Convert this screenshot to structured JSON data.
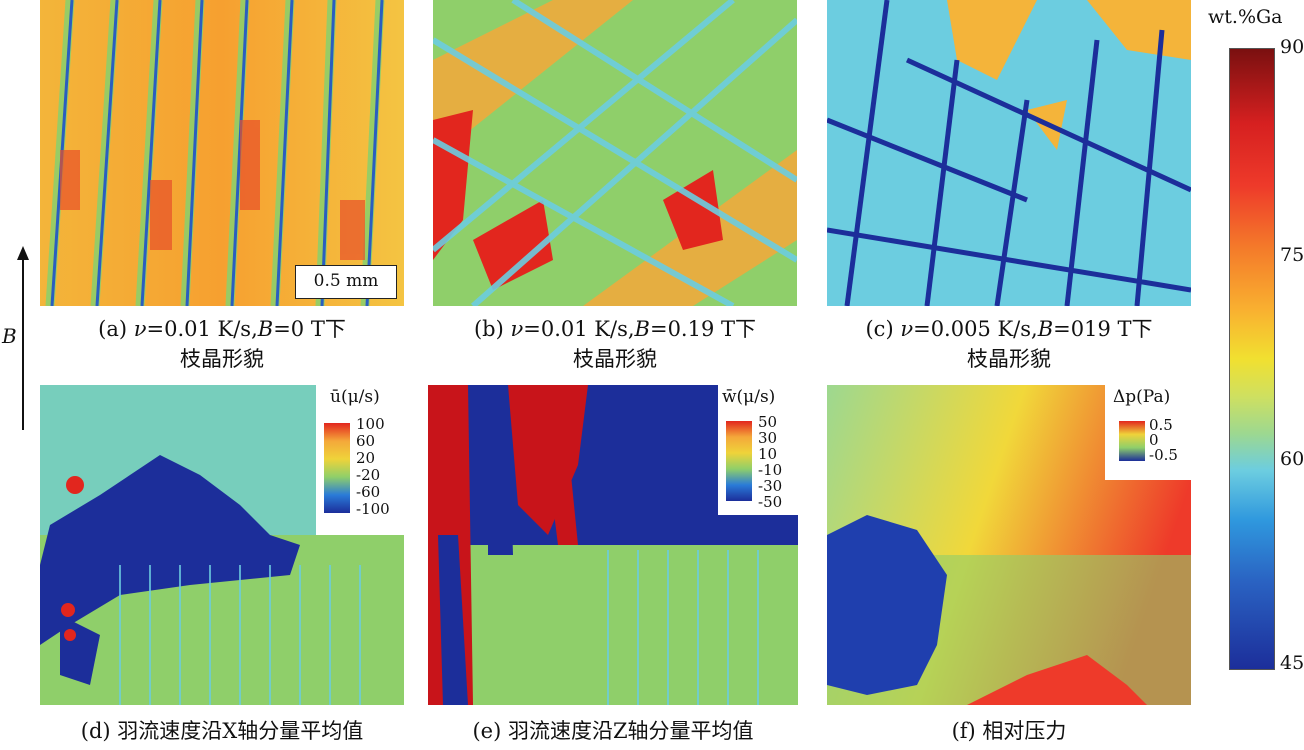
{
  "panels": {
    "a": {
      "caption_line1_prefix": "(a) ",
      "caption_v": "ν",
      "caption_line1_mid": "=0.01 K/s,",
      "caption_B": "B",
      "caption_line1_end": "=0 T下",
      "caption_line2": "枝晶形貌",
      "scalebar": "0.5 mm"
    },
    "b": {
      "caption_line1_prefix": "(b) ",
      "caption_v": "ν",
      "caption_line1_mid": "=0.01 K/s,",
      "caption_B": "B",
      "caption_line1_end": "=0.19 T下",
      "caption_line2": "枝晶形貌"
    },
    "c": {
      "caption_line1_prefix": "(c) ",
      "caption_v": "ν",
      "caption_line1_mid": "=0.005 K/s,",
      "caption_B": "B",
      "caption_line1_end": "=019 T下",
      "caption_line2": "枝晶形貌"
    },
    "d": {
      "caption": "(d) 羽流速度沿X轴分量平均值",
      "legend_title": "ū(μ/s)",
      "legend_ticks": [
        "100",
        "60",
        "20",
        "-20",
        "-60",
        "-100"
      ]
    },
    "e": {
      "caption": "(e) 羽流速度沿Z轴分量平均值",
      "legend_title": "w̄(μ/s)",
      "legend_ticks": [
        "50",
        "30",
        "10",
        "-10",
        "-30",
        "-50"
      ]
    },
    "f": {
      "caption": "(f) 相对压力",
      "legend_title": "Δp(Pa)",
      "legend_ticks": [
        "0.5",
        "0",
        "-0.5"
      ]
    }
  },
  "side_axis": {
    "label": "B"
  },
  "colorbar": {
    "title": "wt.%Ga",
    "ticks": [
      "90",
      "75",
      "60",
      "45"
    ]
  },
  "colors": {
    "red": "#d62020",
    "orange": "#f49a2a",
    "yellow": "#efd33a",
    "green": "#8fcf6a",
    "cyan": "#6ccde0",
    "blue": "#1f3fae"
  }
}
